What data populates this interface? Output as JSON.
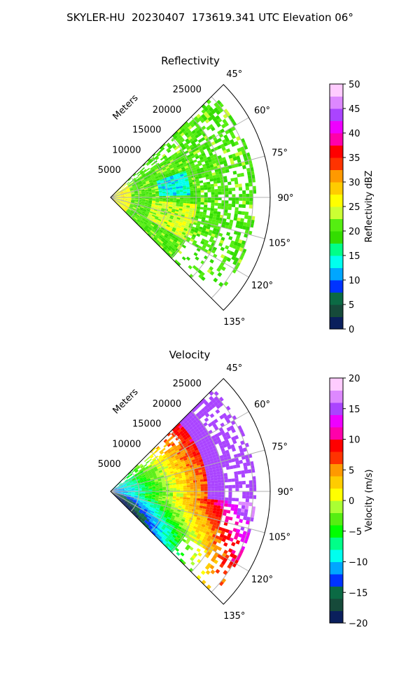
{
  "figure": {
    "title": "SKYLER-HU  20230407  173619.341 UTC Elevation 06°"
  },
  "chart_data": [
    {
      "type": "heatmap",
      "title": "Reflectivity",
      "radial_label": "Meters",
      "radial_ticks": [
        "5000",
        "10000",
        "15000",
        "20000",
        "25000"
      ],
      "angle_ticks": [
        "45°",
        "60°",
        "75°",
        "90°",
        "105°",
        "120°",
        "135°"
      ],
      "azimuth_range": [
        45,
        135
      ],
      "range_max_m": 28000,
      "grid": true,
      "colorbar": {
        "label": "Reflectivity dBZ",
        "range": [
          0,
          50
        ],
        "ticks": [
          "0",
          "5",
          "10",
          "15",
          "20",
          "25",
          "30",
          "35",
          "40",
          "45",
          "50"
        ],
        "colors": [
          "#0a1f5c",
          "#164a3a",
          "#0b6a44",
          "#0033ff",
          "#00a6ff",
          "#00ffee",
          "#00ff88",
          "#33dd00",
          "#55ee11",
          "#ccff33",
          "#ffff00",
          "#ffcc00",
          "#ff9900",
          "#ff3300",
          "#ff0000",
          "#ff00aa",
          "#ee00ff",
          "#aa44ff",
          "#dd88ff",
          "#ffccff"
        ]
      }
    },
    {
      "type": "heatmap",
      "title": "Velocity",
      "radial_label": "Meters",
      "radial_ticks": [
        "5000",
        "10000",
        "15000",
        "20000",
        "25000"
      ],
      "angle_ticks": [
        "45°",
        "60°",
        "75°",
        "90°",
        "105°",
        "120°",
        "135°"
      ],
      "azimuth_range": [
        45,
        135
      ],
      "range_max_m": 28000,
      "grid": true,
      "colorbar": {
        "label": "Velocity (m/s)",
        "range": [
          -20,
          20
        ],
        "ticks": [
          "−20",
          "−15",
          "−10",
          "−5",
          "0",
          "5",
          "10",
          "15",
          "20"
        ],
        "colors": [
          "#0a1f5c",
          "#164a3a",
          "#0b6a44",
          "#0033ff",
          "#00a6ff",
          "#00ffee",
          "#00ff88",
          "#00ff00",
          "#55ee11",
          "#aaff33",
          "#ffff00",
          "#ffcc00",
          "#ff9900",
          "#ff3300",
          "#ff0000",
          "#ff00aa",
          "#ee00ff",
          "#aa44ff",
          "#dd88ff",
          "#ffccff"
        ]
      }
    }
  ]
}
